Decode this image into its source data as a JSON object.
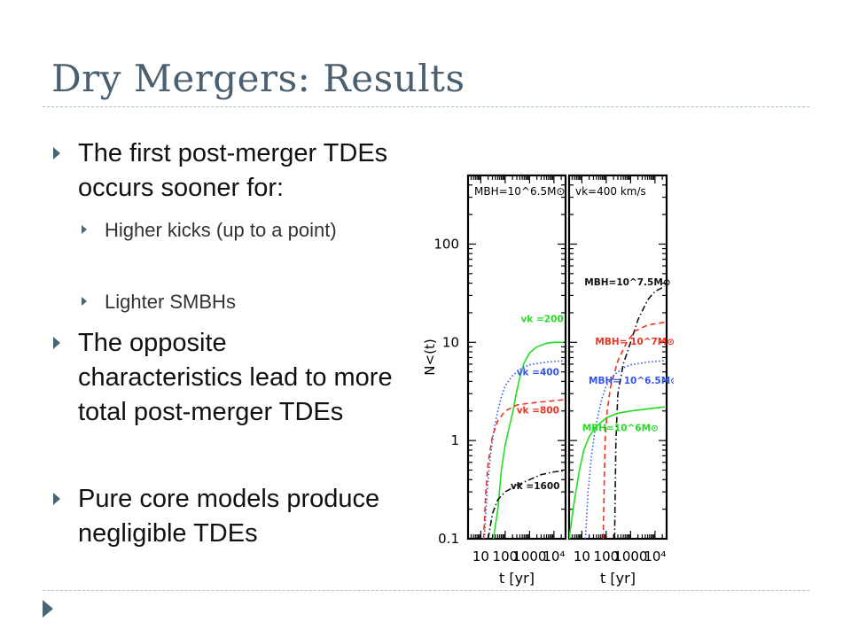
{
  "slide": {
    "title": "Dry Mergers: Results",
    "bullets": [
      {
        "text": "The first post-merger TDEs occurs sooner for:",
        "level": 1
      },
      {
        "text": "Higher kicks (up to a point)",
        "level": 2
      },
      {
        "text": "Lighter SMBHs",
        "level": 2
      },
      {
        "text": "The opposite characteristics lead to more total post-merger TDEs",
        "level": 1
      },
      {
        "text": "Pure core models produce negligible TDEs",
        "level": 1
      }
    ]
  },
  "chart_data": [
    {
      "type": "line",
      "xlabel": "t [yr]",
      "ylabel": "N<(t)",
      "xscale": "log",
      "yscale": "log",
      "xlim": [
        3,
        30000
      ],
      "ylim": [
        0.1,
        500
      ],
      "xticks": [
        "10",
        "100",
        "1000",
        "10⁴"
      ],
      "yticks": [
        "0.1",
        "1",
        "10",
        "100"
      ],
      "panel_label": "MBH=10^6.5M⊙",
      "series": [
        {
          "name": "vk =200",
          "color": "#22dd22",
          "style": "solid",
          "points": [
            [
              33,
              0.1
            ],
            [
              50,
              0.2
            ],
            [
              70,
              0.5
            ],
            [
              100,
              0.9
            ],
            [
              150,
              1.4
            ],
            [
              200,
              1.9
            ],
            [
              300,
              3.2
            ],
            [
              400,
              4.4
            ],
            [
              600,
              6.2
            ],
            [
              1000,
              7.8
            ],
            [
              2000,
              9.0
            ],
            [
              5000,
              9.8
            ],
            [
              10000,
              10
            ],
            [
              25000,
              10
            ]
          ]
        },
        {
          "name": "vk =400",
          "color": "#3355ee",
          "style": "dotted",
          "points": [
            [
              14,
              0.1
            ],
            [
              18,
              0.3
            ],
            [
              25,
              0.7
            ],
            [
              35,
              1.3
            ],
            [
              50,
              2.0
            ],
            [
              70,
              2.8
            ],
            [
              100,
              3.6
            ],
            [
              200,
              4.6
            ],
            [
              500,
              5.5
            ],
            [
              1000,
              5.9
            ],
            [
              5000,
              6.3
            ],
            [
              25000,
              6.5
            ]
          ]
        },
        {
          "name": "vk =800",
          "color": "#ee3322",
          "style": "dashed",
          "points": [
            [
              13,
              0.1
            ],
            [
              16,
              0.3
            ],
            [
              20,
              0.6
            ],
            [
              30,
              1.1
            ],
            [
              50,
              1.6
            ],
            [
              100,
              2.0
            ],
            [
              300,
              2.3
            ],
            [
              1000,
              2.4
            ],
            [
              5000,
              2.5
            ],
            [
              25000,
              2.6
            ]
          ]
        },
        {
          "name": "vk =1600",
          "color": "#111111",
          "style": "dashdot",
          "points": [
            [
              20,
              0.1
            ],
            [
              30,
              0.18
            ],
            [
              50,
              0.25
            ],
            [
              100,
              0.3
            ],
            [
              300,
              0.35
            ],
            [
              1000,
              0.4
            ],
            [
              3000,
              0.45
            ],
            [
              10000,
              0.48
            ],
            [
              25000,
              0.49
            ]
          ]
        }
      ]
    },
    {
      "type": "line",
      "xlabel": "t [yr]",
      "xscale": "log",
      "yscale": "log",
      "xlim": [
        3,
        30000
      ],
      "ylim": [
        0.1,
        500
      ],
      "xticks": [
        "10",
        "100",
        "1000",
        "10⁴"
      ],
      "panel_label": "vk=400 km/s",
      "series": [
        {
          "name": "MBH=10^7.5M⊙",
          "color": "#111111",
          "style": "dashdot",
          "points": [
            [
              220,
              0.1
            ],
            [
              250,
              1.0
            ],
            [
              300,
              3.0
            ],
            [
              500,
              6.0
            ],
            [
              1000,
              10
            ],
            [
              2000,
              17
            ],
            [
              5000,
              27
            ],
            [
              10000,
              33
            ],
            [
              25000,
              37
            ]
          ]
        },
        {
          "name": "MBH= 10^7M⊙",
          "color": "#ee3322",
          "style": "dashed",
          "points": [
            [
              75,
              0.1
            ],
            [
              90,
              1.0
            ],
            [
              110,
              2.0
            ],
            [
              150,
              3.5
            ],
            [
              300,
              6.5
            ],
            [
              700,
              10
            ],
            [
              1500,
              13
            ],
            [
              5000,
              15
            ],
            [
              25000,
              16
            ]
          ]
        },
        {
          "name": "MBH= 10^6.5M⊙",
          "color": "#3355ee",
          "style": "dotted",
          "points": [
            [
              14,
              0.1
            ],
            [
              18,
              0.3
            ],
            [
              25,
              0.7
            ],
            [
              35,
              1.3
            ],
            [
              50,
              2.0
            ],
            [
              70,
              2.8
            ],
            [
              100,
              3.6
            ],
            [
              200,
              4.6
            ],
            [
              500,
              5.5
            ],
            [
              1000,
              5.9
            ],
            [
              5000,
              6.3
            ],
            [
              25000,
              6.5
            ]
          ]
        },
        {
          "name": "MBH=10^6M⊙",
          "color": "#22dd22",
          "style": "solid",
          "points": [
            [
              3,
              0.1
            ],
            [
              5,
              0.25
            ],
            [
              8,
              0.5
            ],
            [
              12,
              0.8
            ],
            [
              20,
              1.1
            ],
            [
              40,
              1.4
            ],
            [
              100,
              1.7
            ],
            [
              300,
              1.9
            ],
            [
              1000,
              2.0
            ],
            [
              5000,
              2.1
            ],
            [
              25000,
              2.2
            ]
          ]
        }
      ]
    }
  ]
}
